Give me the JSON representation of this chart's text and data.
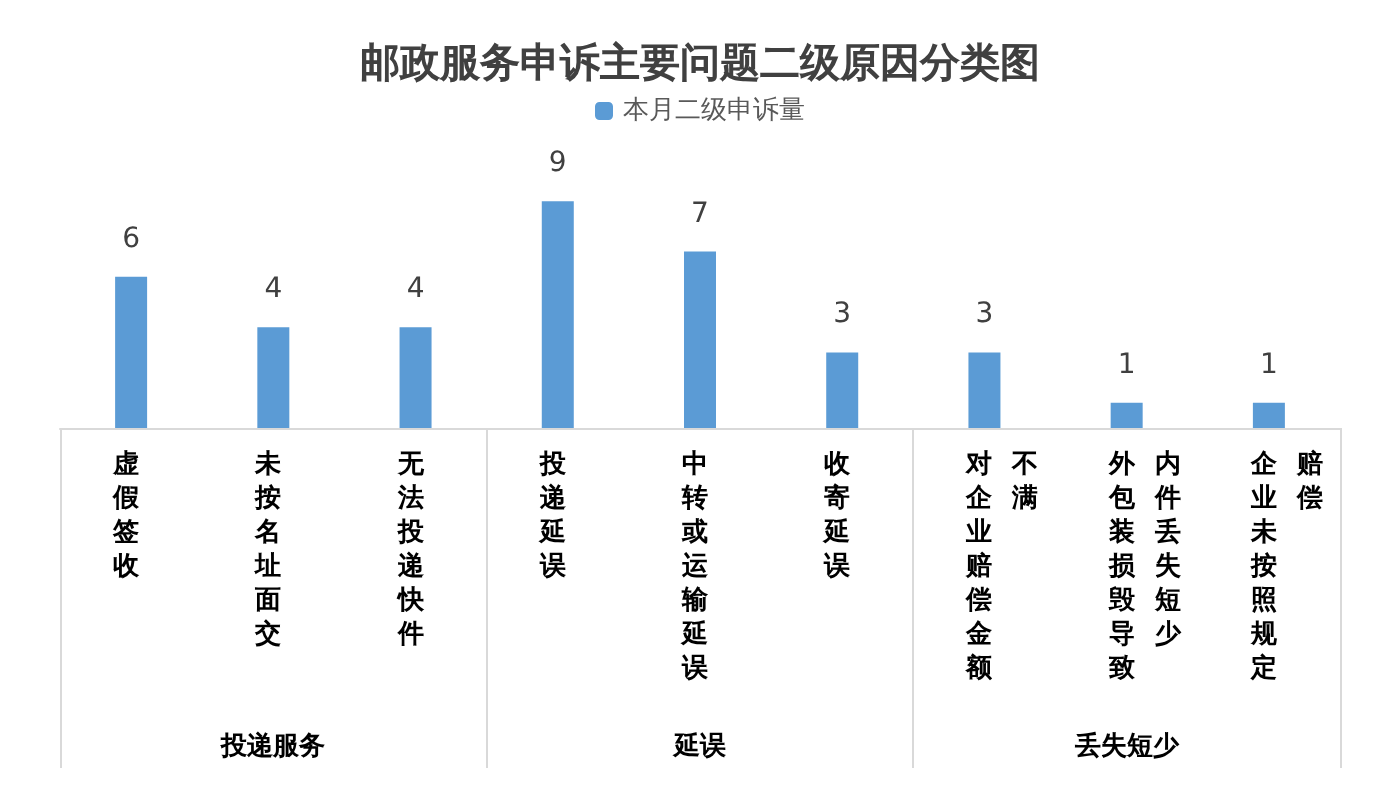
{
  "chart_data": {
    "type": "bar",
    "title": "邮政服务申诉主要问题二级原因分类图",
    "categories": [
      "虚假签收",
      "未按名址面交",
      "无法投递快件",
      "投递延误",
      "中转或运输延误",
      "收寄延误",
      "对企业赔偿金额不满",
      "外包装损毁导致内件丢失短少",
      "企业未按照规定赔偿"
    ],
    "series": [
      {
        "name": "本月二级申诉量",
        "color": "#5b9bd5",
        "values": [
          6,
          4,
          4,
          9,
          7,
          3,
          3,
          1,
          1
        ]
      }
    ],
    "annotations": [
      "投递服务",
      "延误",
      "丢失短少"
    ],
    "data_labels": true,
    "legend": "top"
  }
}
